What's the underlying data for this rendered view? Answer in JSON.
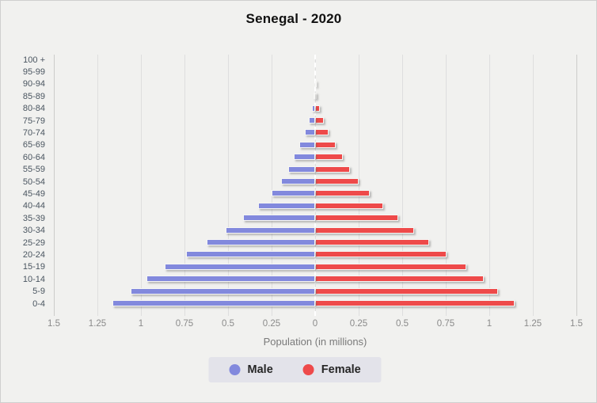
{
  "page": {
    "background": "#f1f1ef",
    "border": "#cfcfcf"
  },
  "chart": {
    "title": "Senegal - 2020",
    "xlabel": "Population (in millions)",
    "x_ticks": [
      "1.5",
      "1.25",
      "1",
      "0.75",
      "0.5",
      "0.25",
      "0",
      "0.25",
      "0.5",
      "0.75",
      "1",
      "1.25",
      "1.5"
    ],
    "legend": [
      {
        "label": "Male",
        "color": "#8289dd"
      },
      {
        "label": "Female",
        "color": "#ee4a4a"
      }
    ]
  },
  "colors": {
    "male_bar": "#8289dd",
    "female_bar": "#ee4a4a",
    "grid": "#dedede",
    "tick_text": "#8a8a8a",
    "age_text": "#4a5560",
    "axis_label_text": "#7a7a7a",
    "legend_bg": "#e3e3ea",
    "title_text": "#111111",
    "center_line": "#ffffff"
  },
  "chart_data": {
    "type": "bar",
    "variant": "population_pyramid",
    "title": "Senegal - 2020",
    "xlabel": "Population (in millions)",
    "units": "millions",
    "xlim": [
      -1.5,
      1.5
    ],
    "tick_step": 0.25,
    "grid": true,
    "legend_position": "bottom",
    "categories_top_to_bottom": [
      "100 +",
      "95-99",
      "90-94",
      "85-89",
      "80-84",
      "75-79",
      "70-74",
      "65-69",
      "60-64",
      "55-59",
      "50-54",
      "45-49",
      "40-44",
      "35-39",
      "30-34",
      "25-29",
      "20-24",
      "15-19",
      "10-14",
      "5-9",
      "0-4"
    ],
    "series": [
      {
        "name": "Male",
        "side": "left",
        "color": "#8289dd",
        "values": [
          0.0,
          0.0,
          0.002,
          0.007,
          0.017,
          0.035,
          0.059,
          0.089,
          0.122,
          0.156,
          0.197,
          0.252,
          0.326,
          0.413,
          0.512,
          0.622,
          0.739,
          0.863,
          0.968,
          1.061,
          1.163
        ]
      },
      {
        "name": "Female",
        "side": "right",
        "color": "#ee4a4a",
        "values": [
          0.0,
          0.001,
          0.003,
          0.011,
          0.026,
          0.048,
          0.079,
          0.117,
          0.159,
          0.202,
          0.251,
          0.314,
          0.392,
          0.479,
          0.566,
          0.654,
          0.754,
          0.87,
          0.966,
          1.051,
          1.147
        ]
      }
    ]
  }
}
